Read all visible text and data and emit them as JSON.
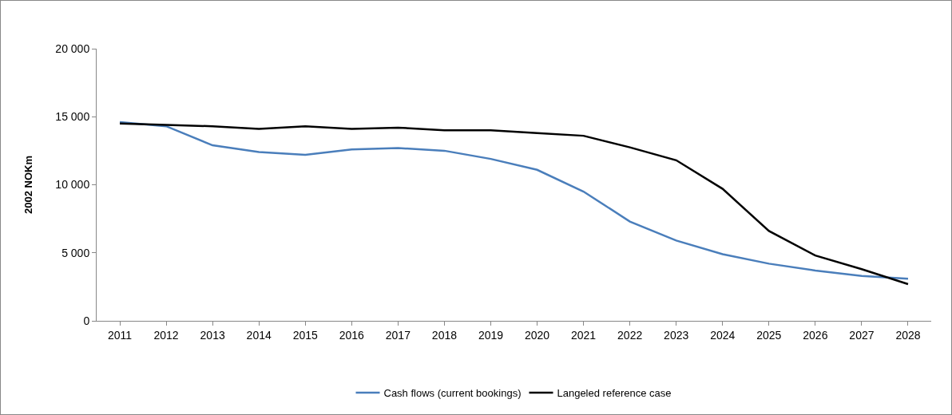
{
  "chart_data": {
    "type": "line",
    "ylabel": "2002 NOKm",
    "categories": [
      "2011",
      "2012",
      "2013",
      "2014",
      "2015",
      "2016",
      "2017",
      "2018",
      "2019",
      "2020",
      "2021",
      "2022",
      "2023",
      "2024",
      "2025",
      "2026",
      "2027",
      "2028"
    ],
    "series": [
      {
        "name": "Cash flows (current bookings)",
        "color": "#4a7ebb",
        "values": [
          14600,
          14300,
          12900,
          12400,
          12200,
          12600,
          12700,
          12500,
          11900,
          11100,
          9500,
          7300,
          5900,
          4900,
          4200,
          3700,
          3300,
          3100
        ]
      },
      {
        "name": "Langeled reference case",
        "color": "#000000",
        "values": [
          14500,
          14400,
          14300,
          14100,
          14300,
          14100,
          14200,
          14000,
          14000,
          13800,
          13600,
          12750,
          11800,
          9700,
          6600,
          4800,
          3800,
          2700
        ]
      }
    ],
    "ylim": [
      0,
      20000
    ],
    "yticks": [
      0,
      {
        "value": 5000,
        "label": "5 000"
      },
      {
        "value": 10000,
        "label": "10 000"
      },
      {
        "value": 15000,
        "label": "15 000"
      },
      {
        "value": 20000,
        "label": "20 000"
      }
    ],
    "grid": false,
    "legend": "bottom",
    "marker": "none",
    "line_style": "solid"
  }
}
